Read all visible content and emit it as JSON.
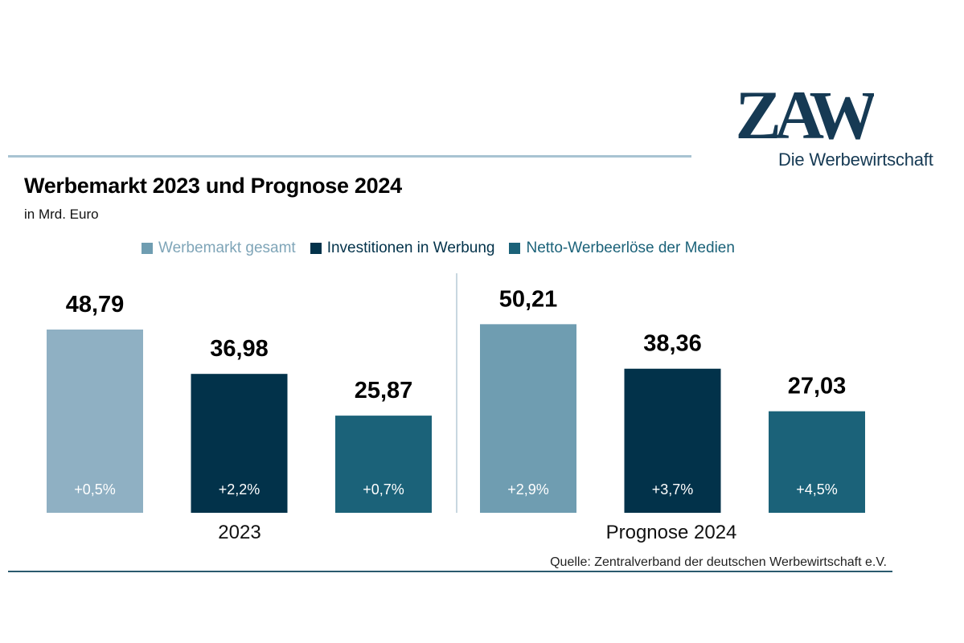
{
  "logo": {
    "text": "ZAW",
    "tagline": "Die Werbewirtschaft",
    "color": "#163a54"
  },
  "header": {
    "title": "Werbemarkt 2023 und Prognose 2024",
    "subtitle": "in Mrd. Euro"
  },
  "footer": {
    "source": "Quelle: Zentralverband der deutschen Werbewirtschaft e.V."
  },
  "chart_data": {
    "type": "bar",
    "title": "Werbemarkt 2023 und Prognose 2024",
    "subtitle": "in Mrd. Euro",
    "xlabel": "",
    "ylabel": "in Mrd. Euro",
    "ylim": [
      0,
      55
    ],
    "grid": false,
    "legend_position": "top",
    "categories": [
      "2023",
      "Prognose 2024"
    ],
    "series": [
      {
        "name": "Werbemarkt gesamt",
        "color": "#6f9db1",
        "colors_by_category": [
          "#8fb0c3",
          "#6f9db1"
        ],
        "values": [
          48.79,
          50.21
        ],
        "value_labels": [
          "48,79",
          "50,21"
        ],
        "change_labels": [
          "+0,5%",
          "+2,9%"
        ]
      },
      {
        "name": "Investitionen in Werbung",
        "color": "#02324a",
        "colors_by_category": [
          "#02324a",
          "#02324a"
        ],
        "values": [
          36.98,
          38.36
        ],
        "value_labels": [
          "36,98",
          "38,36"
        ],
        "change_labels": [
          "+2,2%",
          "+3,7%"
        ]
      },
      {
        "name": "Netto-Werbeerlöse der Medien",
        "color": "#1b6279",
        "colors_by_category": [
          "#1b6279",
          "#1b6279"
        ],
        "values": [
          25.87,
          27.03
        ],
        "value_labels": [
          "25,87",
          "27,03"
        ],
        "change_labels": [
          "+0,7%",
          "+4,5%"
        ]
      }
    ],
    "legend": [
      "Werbemarkt gesamt",
      "Investitionen in Werbung",
      "Netto-Werbeerlöse der Medien"
    ],
    "legend_text_colors": [
      "#7fa5b8",
      "#02324a",
      "#1b6279"
    ],
    "divider_color": "#c8d7e0"
  }
}
